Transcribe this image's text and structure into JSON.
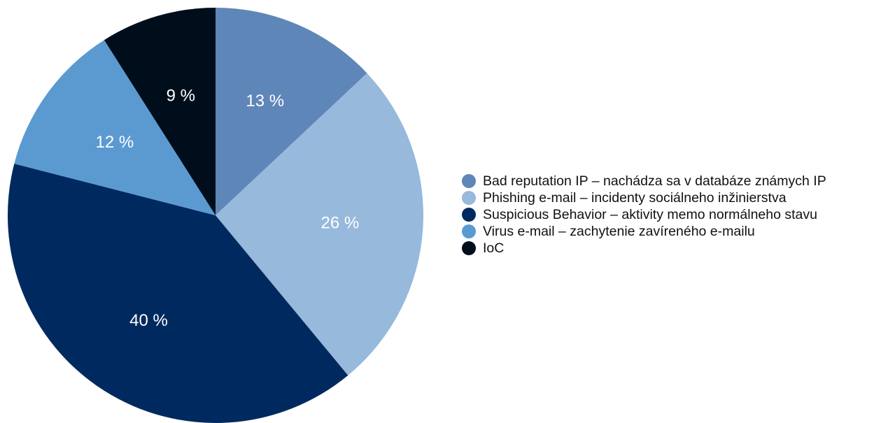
{
  "chart_data": {
    "type": "pie",
    "title": "",
    "legend_position": "right",
    "slices": [
      {
        "label": "Bad reputation IP – nachádza sa v databáze známych IP",
        "value": 13,
        "value_label": "13 %",
        "color": "#5f86b9"
      },
      {
        "label": "Phishing e-mail – incidenty sociálneho inžinierstva",
        "value": 26,
        "value_label": "26 %",
        "color": "#96b9dc"
      },
      {
        "label": "Suspicious Behavior – aktivity memo normálneho stavu",
        "value": 40,
        "value_label": "40 %",
        "color": "#002a5f"
      },
      {
        "label": "Virus e-mail – zachytenie zavíreného e-mailu",
        "value": 12,
        "value_label": "12 %",
        "color": "#5b9ad1"
      },
      {
        "label": "IoC",
        "value": 9,
        "value_label": "9 %",
        "color": "#000e1c"
      }
    ]
  }
}
